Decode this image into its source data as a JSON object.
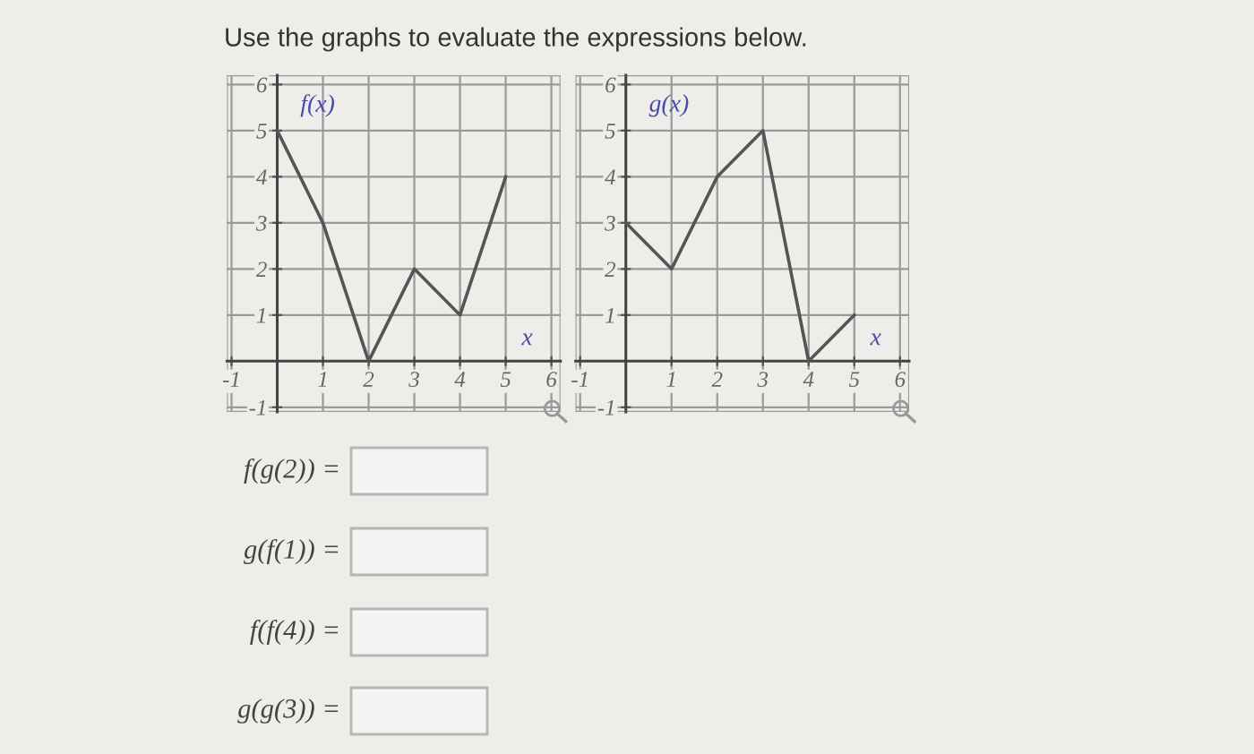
{
  "chart_data": [
    {
      "type": "line",
      "title": "Use the graphs to evaluate the expressions below.",
      "xlabel": "x",
      "ylabel": "f(x)",
      "x": [
        0,
        1,
        2,
        3,
        4,
        5
      ],
      "values": [
        5,
        3,
        0,
        2,
        1,
        4
      ],
      "color": "#555555",
      "xlim": [
        -1.1,
        6.2
      ],
      "ylim": [
        -1.1,
        6.2
      ],
      "xticks": [
        -1,
        1,
        2,
        3,
        4,
        5,
        6
      ],
      "yticks": [
        -1,
        1,
        2,
        3,
        4,
        5,
        6
      ],
      "grid": true,
      "marker": "none",
      "line_style": "solid",
      "annotations": [
        "f(g(2)) =",
        "g(f(1)) =",
        "f(f(4)) =",
        "g(g(3)) ="
      ]
    },
    {
      "type": "line",
      "xlabel": "x",
      "ylabel": "g(x)",
      "x": [
        0,
        1,
        2,
        3,
        4,
        5
      ],
      "values": [
        3,
        2,
        4,
        5,
        0,
        1
      ],
      "color": "#555555",
      "xlim": [
        -1.1,
        6.2
      ],
      "ylim": [
        -1.1,
        6.2
      ],
      "xticks": [
        -1,
        1,
        2,
        3,
        4,
        5,
        6
      ],
      "yticks": [
        -1,
        1,
        2,
        3,
        4,
        5,
        6
      ],
      "grid": true,
      "marker": "none",
      "line_style": "solid"
    }
  ]
}
